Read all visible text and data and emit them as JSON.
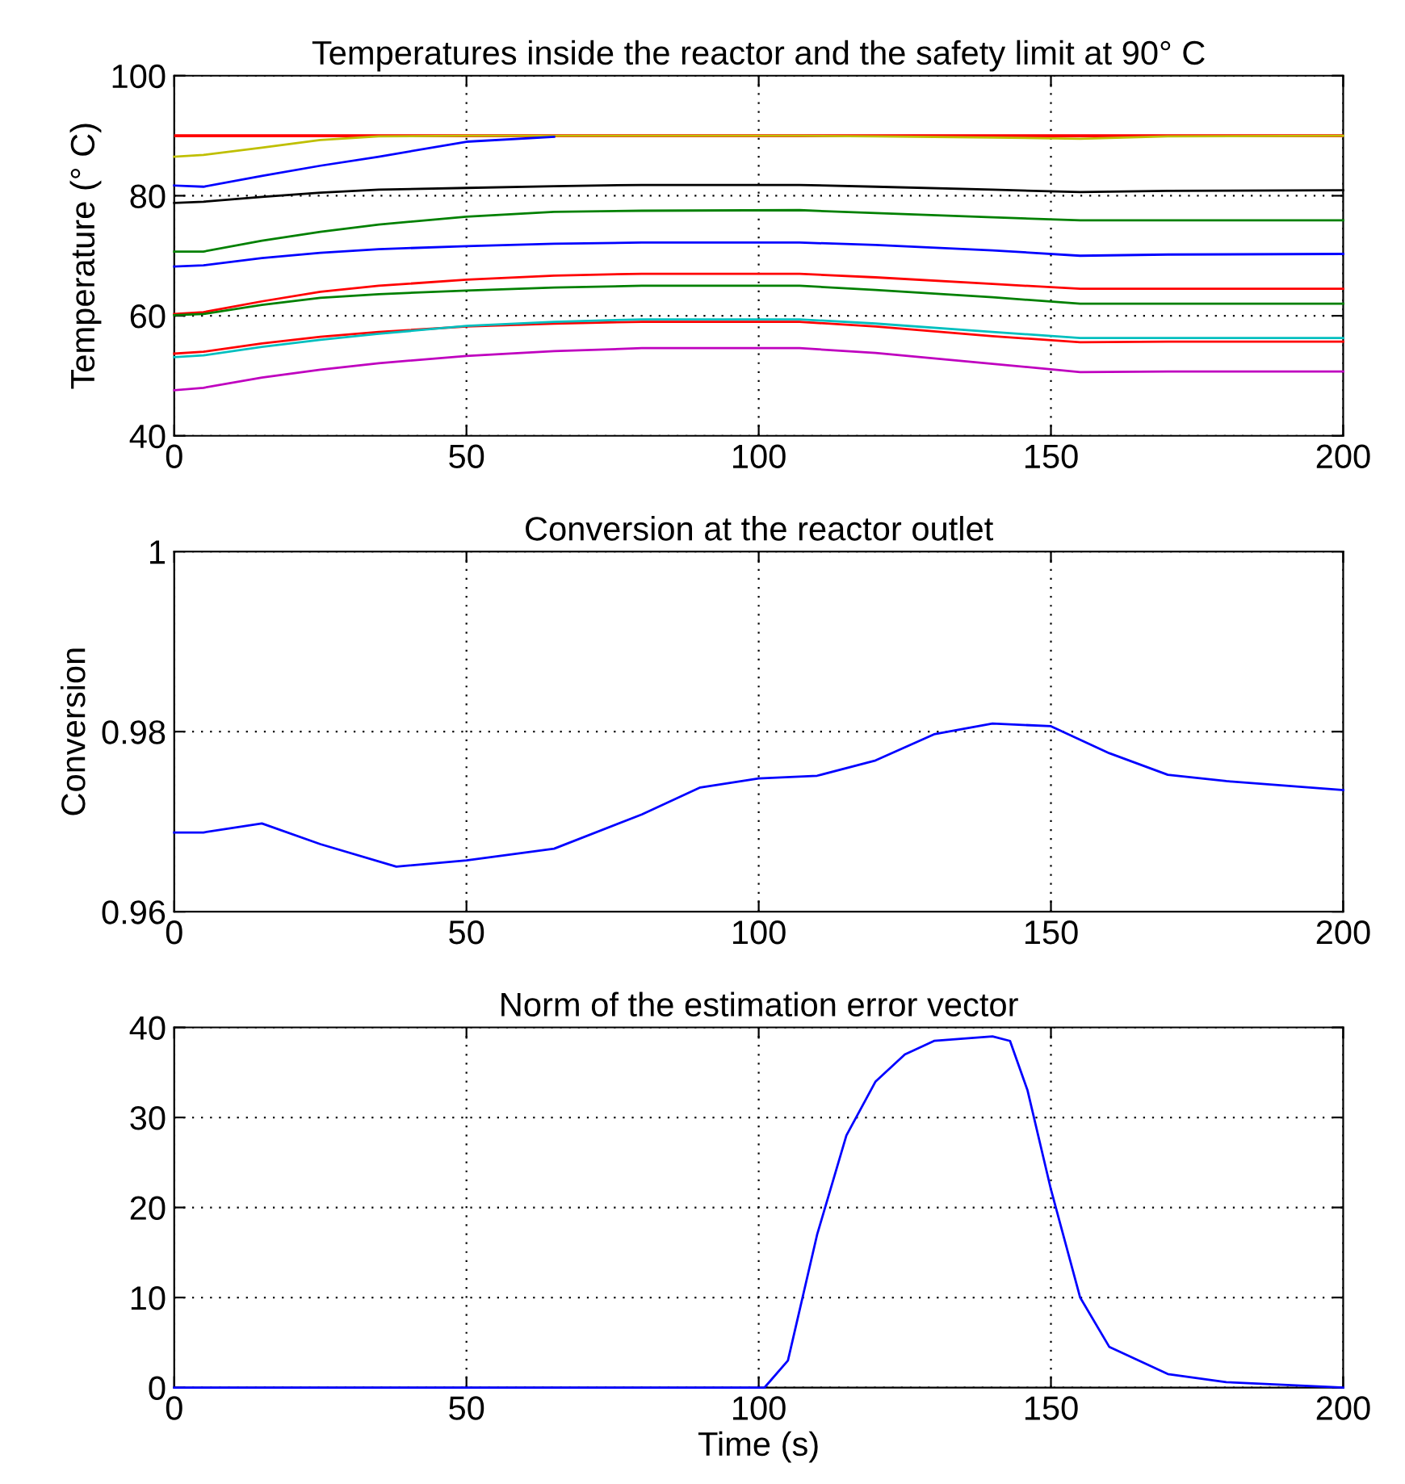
{
  "chart_data": [
    {
      "type": "line",
      "title": "Temperatures inside the reactor and the safety limit at 90° C",
      "ylabel": "Temperature (° C)",
      "x": [
        0,
        5,
        15,
        25,
        35,
        50,
        65,
        80,
        107,
        120,
        140,
        155,
        170,
        200
      ],
      "series": [
        {
          "color": "#bfbf00",
          "values": [
            86.5,
            86.8,
            88.0,
            89.3,
            89.9,
            90.0,
            90.0,
            90.0,
            90.0,
            89.9,
            89.7,
            89.5,
            89.9,
            90.0
          ]
        },
        {
          "color": "#0000ff",
          "values": [
            81.7,
            81.5,
            83.3,
            85.0,
            86.5,
            89.0,
            89.8,
            null,
            null,
            null,
            null,
            null,
            null,
            null
          ]
        },
        {
          "color": "#000000",
          "values": [
            78.8,
            79.0,
            79.8,
            80.5,
            81.0,
            81.3,
            81.6,
            81.8,
            81.8,
            81.5,
            81.0,
            80.6,
            80.8,
            80.9
          ]
        },
        {
          "color": "#008000",
          "values": [
            70.7,
            70.7,
            72.5,
            74.0,
            75.2,
            76.5,
            77.3,
            77.5,
            77.6,
            77.1,
            76.4,
            75.9,
            75.9,
            75.9
          ]
        },
        {
          "color": "#0000ff",
          "values": [
            68.2,
            68.4,
            69.6,
            70.5,
            71.1,
            71.6,
            72.0,
            72.2,
            72.2,
            71.8,
            70.9,
            70.0,
            70.2,
            70.3
          ]
        },
        {
          "color": "#ff0000",
          "values": [
            60.3,
            60.6,
            62.4,
            64.0,
            65.0,
            66.0,
            66.7,
            67.0,
            67.0,
            66.4,
            65.3,
            64.5,
            64.5,
            64.5
          ]
        },
        {
          "color": "#008000",
          "values": [
            60.1,
            60.3,
            61.8,
            63.0,
            63.6,
            64.2,
            64.7,
            65.0,
            65.0,
            64.3,
            63.1,
            62.0,
            62.0,
            62.0
          ]
        },
        {
          "color": "#ff0000",
          "values": [
            53.7,
            54.0,
            55.4,
            56.5,
            57.3,
            58.2,
            58.7,
            59.0,
            59.0,
            58.2,
            56.6,
            55.6,
            55.7,
            55.7
          ]
        },
        {
          "color": "#00bfbf",
          "values": [
            53.1,
            53.4,
            54.8,
            56.0,
            57.0,
            58.3,
            59.0,
            59.4,
            59.4,
            58.7,
            57.3,
            56.3,
            56.3,
            56.3
          ]
        },
        {
          "color": "#bf00bf",
          "values": [
            47.6,
            48.0,
            49.7,
            51.0,
            52.1,
            53.3,
            54.1,
            54.6,
            54.6,
            53.8,
            52.0,
            50.6,
            50.7,
            50.7
          ]
        }
      ],
      "ref_lines": [
        {
          "axis": "y",
          "value": 90,
          "label": null,
          "color": "#ff0000"
        }
      ],
      "xlim": [
        0,
        200
      ],
      "xticks": [
        0,
        50,
        100,
        150,
        200
      ],
      "ylim": [
        40,
        100
      ],
      "yticks": [
        40,
        60,
        80,
        100
      ],
      "grid": true
    },
    {
      "type": "line",
      "title": "Conversion at the reactor outlet",
      "ylabel": "Conversion",
      "x": [
        0,
        5,
        15,
        25,
        38,
        50,
        65,
        80,
        90,
        100,
        110,
        120,
        130,
        140,
        150,
        160,
        170,
        180,
        200
      ],
      "series": [
        {
          "color": "#0000ff",
          "values": [
            0.9688,
            0.9688,
            0.9698,
            0.9675,
            0.965,
            0.9657,
            0.967,
            0.9708,
            0.9738,
            0.9748,
            0.9751,
            0.9768,
            0.9797,
            0.9809,
            0.9806,
            0.9776,
            0.9752,
            0.9745,
            0.9735
          ]
        }
      ],
      "xlim": [
        0,
        200
      ],
      "xticks": [
        0,
        50,
        100,
        150,
        200
      ],
      "ylim": [
        0.96,
        1
      ],
      "yticks": [
        0.96,
        0.98,
        1
      ],
      "grid": true
    },
    {
      "type": "line",
      "title": "Norm of the estimation error vector",
      "xlabel": "Time (s)",
      "x": [
        0,
        50,
        101,
        105,
        110,
        115,
        120,
        125,
        130,
        140,
        143,
        146,
        150,
        155,
        160,
        170,
        180,
        200
      ],
      "series": [
        {
          "color": "#0000ff",
          "values": [
            0,
            0,
            0,
            3,
            17,
            28,
            34,
            37,
            38.5,
            39,
            38.5,
            33,
            22,
            10,
            4.5,
            1.5,
            0.6,
            0
          ]
        }
      ],
      "xlim": [
        0,
        200
      ],
      "xticks": [
        0,
        50,
        100,
        150,
        200
      ],
      "ylim": [
        0,
        40
      ],
      "yticks": [
        0,
        10,
        20,
        30,
        40
      ],
      "grid": true
    }
  ]
}
